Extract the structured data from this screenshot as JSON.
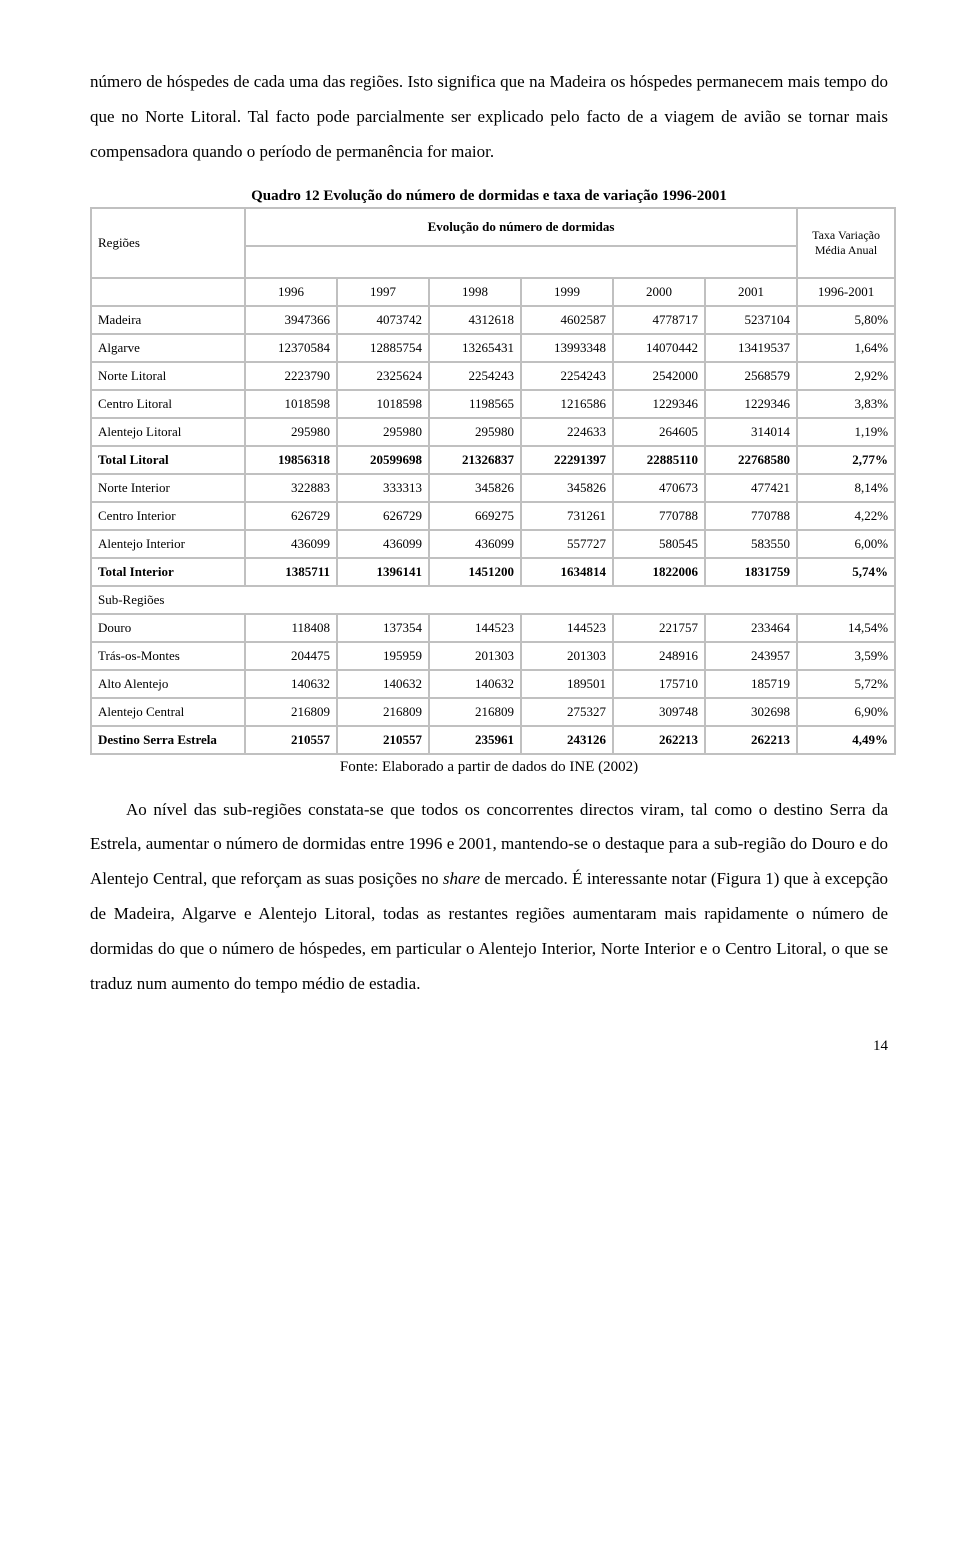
{
  "para1": "número de hóspedes de cada uma das regiões. Isto significa que na Madeira os hóspedes permanecem mais tempo do que no Norte Litoral. Tal facto pode parcialmente ser explicado pelo facto de a viagem de avião se tornar mais compensadora quando o período de permanência for maior.",
  "table_caption": "Quadro 12 Evolução do número de dormidas e taxa de variação 1996-2001",
  "header": {
    "regioes": "Regiões",
    "evolucao": "Evolução do número de dormidas",
    "taxa": "Taxa Variação Média Anual",
    "years": [
      "1996",
      "1997",
      "1998",
      "1999",
      "2000",
      "2001"
    ],
    "range": "1996-2001"
  },
  "rows_upper": [
    {
      "label": "Madeira",
      "v": [
        "3947366",
        "4073742",
        "4312618",
        "4602587",
        "4778717",
        "5237104",
        "5,80%"
      ]
    },
    {
      "label": "Algarve",
      "v": [
        "12370584",
        "12885754",
        "13265431",
        "13993348",
        "14070442",
        "13419537",
        "1,64%"
      ]
    },
    {
      "label": "Norte Litoral",
      "v": [
        "2223790",
        "2325624",
        "2254243",
        "2254243",
        "2542000",
        "2568579",
        "2,92%"
      ]
    },
    {
      "label": "Centro Litoral",
      "v": [
        "1018598",
        "1018598",
        "1198565",
        "1216586",
        "1229346",
        "1229346",
        "3,83%"
      ]
    },
    {
      "label": "Alentejo Litoral",
      "v": [
        "295980",
        "295980",
        "295980",
        "224633",
        "264605",
        "314014",
        "1,19%"
      ]
    }
  ],
  "row_total_litoral": {
    "label": "Total Litoral",
    "v": [
      "19856318",
      "20599698",
      "21326837",
      "22291397",
      "22885110",
      "22768580",
      "2,77%"
    ]
  },
  "rows_mid": [
    {
      "label": "Norte Interior",
      "v": [
        "322883",
        "333313",
        "345826",
        "345826",
        "470673",
        "477421",
        "8,14%"
      ]
    },
    {
      "label": "Centro Interior",
      "v": [
        "626729",
        "626729",
        "669275",
        "731261",
        "770788",
        "770788",
        "4,22%"
      ]
    },
    {
      "label": "Alentejo Interior",
      "v": [
        "436099",
        "436099",
        "436099",
        "557727",
        "580545",
        "583550",
        "6,00%"
      ]
    }
  ],
  "row_total_interior": {
    "label": "Total Interior",
    "v": [
      "1385711",
      "1396141",
      "1451200",
      "1634814",
      "1822006",
      "1831759",
      "5,74%"
    ]
  },
  "sub_regioes_label": "Sub-Regiões",
  "rows_sub": [
    {
      "label": "Douro",
      "v": [
        "118408",
        "137354",
        "144523",
        "144523",
        "221757",
        "233464",
        "14,54%"
      ]
    },
    {
      "label": "Trás-os-Montes",
      "v": [
        "204475",
        "195959",
        "201303",
        "201303",
        "248916",
        "243957",
        "3,59%"
      ]
    },
    {
      "label": "Alto Alentejo",
      "v": [
        "140632",
        "140632",
        "140632",
        "189501",
        "175710",
        "185719",
        "5,72%"
      ]
    },
    {
      "label": "Alentejo Central",
      "v": [
        "216809",
        "216809",
        "216809",
        "275327",
        "309748",
        "302698",
        "6,90%"
      ]
    }
  ],
  "row_destino": {
    "label": "Destino Serra Estrela",
    "v": [
      "210557",
      "210557",
      "235961",
      "243126",
      "262213",
      "262213",
      "4,49%"
    ]
  },
  "fonte": "Fonte: Elaborado a partir de dados do INE (2002)",
  "para2_pre": "Ao nível das sub-regiões constata-se que todos os concorrentes directos viram, tal como o destino Serra da Estrela, aumentar o número de dormidas entre 1996 e 2001, mantendo-se o destaque para a sub-região do Douro e do Alentejo Central, que reforçam as suas posições no ",
  "para2_share": "share",
  "para2_post": " de mercado. É interessante notar (Figura 1) que à excepção de Madeira, Algarve e Alentejo Litoral, todas as restantes regiões aumentaram mais rapidamente o número de dormidas do que o número de hóspedes, em particular o Alentejo Interior, Norte Interior e o Centro Litoral, o que se traduz num aumento do tempo médio de estadia.",
  "page_number": "14"
}
